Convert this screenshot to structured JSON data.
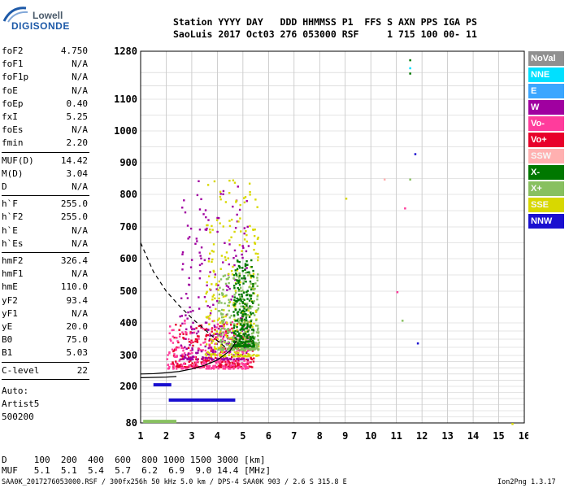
{
  "logo": {
    "top": "Lowell",
    "bottom": "DIGISONDE"
  },
  "header": {
    "line1": "Station YYYY DAY   DDD HHMMSS P1  FFS S AXN PPS IGA PS",
    "line2": "SaoLuis 2017 Oct03 276 053000 RSF     1 715 100 00- 11"
  },
  "scaled_params": [
    {
      "label": "foF2",
      "value": "4.750"
    },
    {
      "label": "foF1",
      "value": "N/A"
    },
    {
      "label": "foF1p",
      "value": "N/A"
    },
    {
      "label": "foE",
      "value": "N/A"
    },
    {
      "label": "foEp",
      "value": "0.40"
    },
    {
      "label": "fxI",
      "value": "5.25"
    },
    {
      "label": "foEs",
      "value": "N/A"
    },
    {
      "label": "fmin",
      "value": "2.20"
    },
    {
      "label": "MUF(D)",
      "value": "14.42"
    },
    {
      "label": "M(D)",
      "value": "3.04"
    },
    {
      "label": "D",
      "value": "N/A"
    },
    {
      "label": "h`F",
      "value": "255.0"
    },
    {
      "label": "h`F2",
      "value": "255.0"
    },
    {
      "label": "h`E",
      "value": "N/A"
    },
    {
      "label": "h`Es",
      "value": "N/A"
    },
    {
      "label": "hmF2",
      "value": "326.4"
    },
    {
      "label": "hmF1",
      "value": "N/A"
    },
    {
      "label": "hmE",
      "value": "110.0"
    },
    {
      "label": "yF2",
      "value": "93.4"
    },
    {
      "label": "yF1",
      "value": "N/A"
    },
    {
      "label": "yE",
      "value": "20.0"
    },
    {
      "label": "B0",
      "value": "75.0"
    },
    {
      "label": "B1",
      "value": "5.03"
    },
    {
      "label": "C-level",
      "value": "22"
    }
  ],
  "autoscaler": [
    "Auto:",
    "Artist5",
    "500200"
  ],
  "legend": [
    {
      "label": "NoVal",
      "color": "#909090"
    },
    {
      "label": "NNE",
      "color": "#00e0ff"
    },
    {
      "label": "E",
      "color": "#3aa6ff"
    },
    {
      "label": "W",
      "color": "#a000a0"
    },
    {
      "label": "Vo-",
      "color": "#ff3c9c"
    },
    {
      "label": "Vo+",
      "color": "#e8002a"
    },
    {
      "label": "SSW",
      "color": "#ffb0b0"
    },
    {
      "label": "X-",
      "color": "#007800"
    },
    {
      "label": "X+",
      "color": "#88c060"
    },
    {
      "label": "SSE",
      "color": "#d8d800"
    },
    {
      "label": "NNW",
      "color": "#1a10d0"
    }
  ],
  "muf_table": {
    "d_line": "D     100  200  400  600  800 1000 1500 3000 [km]",
    "muf_line": "MUF   5.1  5.1  5.4  5.7  6.2  6.9  9.0 14.4 [MHz]"
  },
  "bottom": {
    "info": "SAA0K_2017276053000.RSF / 300fx256h 50 kHz 5.0 km / DPS-4 SAA0K 903 / 2.6 S 315.8 E",
    "version": "Ion2Png 1.3.17"
  },
  "chart_data": {
    "type": "scatter",
    "title": "",
    "xlabel": "",
    "ylabel": "",
    "xlim": [
      1,
      16
    ],
    "ylim": [
      80,
      1280
    ],
    "x_ticks": [
      1,
      2,
      3,
      4,
      5,
      6,
      7,
      8,
      9,
      10,
      11,
      12,
      13,
      14,
      15,
      16
    ],
    "y_ticks": [
      80,
      200,
      300,
      400,
      500,
      600,
      700,
      800,
      900,
      1000,
      1100,
      1280
    ],
    "grid": true,
    "scale": "virtual height nonlinear",
    "echo_clusters": [
      {
        "name": "Vo+",
        "fmin": 2.2,
        "fmax": 5.4,
        "hmin": 265,
        "hmax": 400,
        "color": "#e8002a"
      },
      {
        "name": "Vo-",
        "fmin": 2.0,
        "fmax": 5.3,
        "hmin": 260,
        "hmax": 420,
        "color": "#ff3c9c"
      },
      {
        "name": "W",
        "fmin": 2.5,
        "fmax": 5.2,
        "hmin": 290,
        "hmax": 850,
        "color": "#a000a0"
      },
      {
        "name": "SSE",
        "fmin": 3.5,
        "fmax": 5.6,
        "hmin": 300,
        "hmax": 850,
        "color": "#d8d800"
      },
      {
        "name": "X+",
        "fmin": 4.0,
        "fmax": 5.6,
        "hmin": 320,
        "hmax": 560,
        "color": "#88c060"
      },
      {
        "name": "X-",
        "fmin": 4.6,
        "fmax": 5.4,
        "hmin": 330,
        "hmax": 600,
        "color": "#007800"
      },
      {
        "name": "NNW",
        "fmin": 2.1,
        "fmax": 4.7,
        "hmin": 155,
        "hmax": 155,
        "color": "#1a10d0"
      },
      {
        "name": "X+",
        "fmin": 1.1,
        "fmax": 2.4,
        "hmin": 85,
        "hmax": 85,
        "color": "#88c060"
      },
      {
        "name": "NNW",
        "fmin": 1.5,
        "fmax": 2.2,
        "hmin": 205,
        "hmax": 205,
        "color": "#1a10d0"
      }
    ],
    "trace_solid": [
      [
        1.0,
        240
      ],
      [
        1.5,
        241
      ],
      [
        2.0,
        244
      ],
      [
        2.5,
        248
      ],
      [
        3.0,
        256
      ],
      [
        3.5,
        268
      ],
      [
        4.0,
        285
      ],
      [
        4.5,
        315
      ],
      [
        4.75,
        345
      ]
    ],
    "trace_lower": [
      [
        1.0,
        228
      ],
      [
        1.5,
        229
      ],
      [
        2.0,
        230
      ],
      [
        2.4,
        232
      ]
    ],
    "trace_dashed": [
      [
        1.0,
        650
      ],
      [
        1.5,
        560
      ],
      [
        2.0,
        500
      ],
      [
        2.5,
        455
      ],
      [
        3.0,
        415
      ],
      [
        3.5,
        380
      ],
      [
        4.0,
        345
      ],
      [
        4.4,
        320
      ]
    ]
  }
}
